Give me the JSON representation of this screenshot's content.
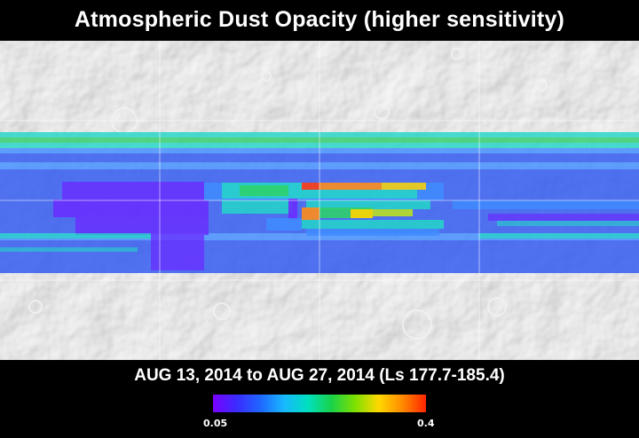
{
  "title": "Atmospheric Dust Opacity (higher sensitivity)",
  "date_range": "AUG 13, 2014 to AUG 27, 2014 (Ls 177.7-185.4)",
  "colorbar": {
    "min_label": "0.05",
    "max_label": "0.4",
    "colors": [
      "#7a00ff",
      "#3a2cff",
      "#1f66ff",
      "#18b8ff",
      "#00e0c0",
      "#19d24a",
      "#7ee000",
      "#ffd800",
      "#ff8a00",
      "#ff2400"
    ]
  },
  "map": {
    "background_colors": {
      "terrain_light": "#d8d8d8",
      "terrain_dark": "#9e9e9e"
    },
    "overlay_palette": {
      "violet": "#6a2cff",
      "blue": "#2d56f0",
      "mid_blue": "#3f8cff",
      "cyan": "#25d6c8",
      "green": "#2fd06a",
      "yellow_green": "#b8e020",
      "yellow": "#ffd400",
      "orange": "#ff8c1a",
      "red": "#ff3d12"
    }
  }
}
